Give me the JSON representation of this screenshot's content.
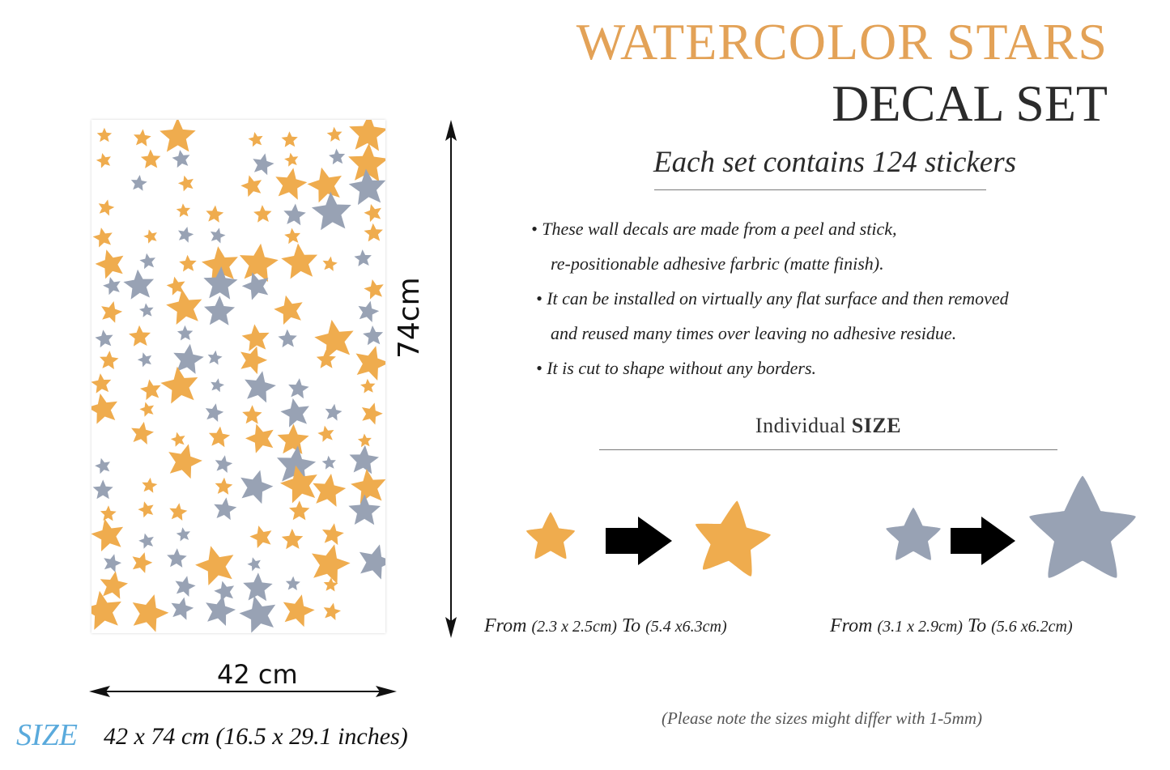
{
  "header": {
    "title_line1": "WATERCOLOR STARS",
    "title_line2": "DECAL SET",
    "subtitle": "Each set contains 124 stickers"
  },
  "bullets": {
    "b1_line1": "• These wall decals are made from a peel and stick,",
    "b1_line2": "re-positionable adhesive farbric (matte finish).",
    "b2_line1": "• It can be installed on virtually any flat surface and then removed",
    "b2_line2": "and reused many times over leaving no adhesive residue.",
    "b3": "• It is cut to shape without any borders."
  },
  "individual_size": {
    "label": "Individual",
    "label_bold": "SIZE",
    "orange": {
      "from_word": "From",
      "from_value": "(2.3 x 2.5cm)",
      "to_word": "To",
      "to_value": "(5.4 x6.3cm)"
    },
    "grey": {
      "from_word": "From",
      "from_value": "(3.1 x 2.9cm)",
      "to_word": "To",
      "to_value": "(5.6 x6.2cm)"
    }
  },
  "dimensions": {
    "width_label": "42 cm",
    "height_label": "74cm"
  },
  "size_footer": {
    "label": "SIZE",
    "value": "42 x 74 cm (16.5 x 29.1 inches)"
  },
  "note": "(Please note the sizes might differ with 1-5mm)",
  "colors": {
    "orange_star": "#efac4e",
    "grey_star": "#98a2b4",
    "title_accent": "#e3a257",
    "size_label": "#5aaadc"
  },
  "icons": {
    "arrow": "right-arrow-icon",
    "star": "star-icon"
  }
}
